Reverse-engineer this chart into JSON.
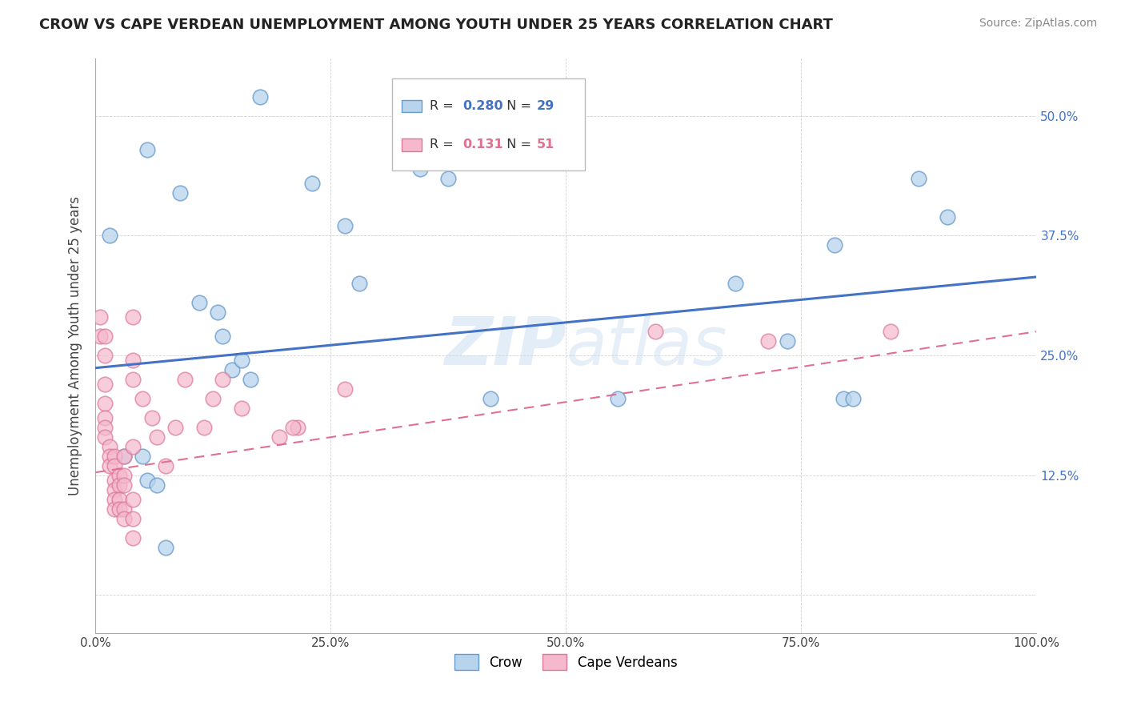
{
  "title": "CROW VS CAPE VERDEAN UNEMPLOYMENT AMONG YOUTH UNDER 25 YEARS CORRELATION CHART",
  "source": "Source: ZipAtlas.com",
  "ylabel": "Unemployment Among Youth under 25 years",
  "crow_r": 0.28,
  "crow_n": 29,
  "cape_r": 0.131,
  "cape_n": 51,
  "crow_color": "#b8d4ed",
  "cape_color": "#f5b8cc",
  "crow_edge_color": "#6699cc",
  "cape_edge_color": "#dd7799",
  "crow_line_color": "#4472c4",
  "cape_line_color": "#e07090",
  "background_color": "#ffffff",
  "xlim": [
    0.0,
    1.0
  ],
  "ylim": [
    -0.04,
    0.56
  ],
  "xticks": [
    0.0,
    0.25,
    0.5,
    0.75,
    1.0
  ],
  "xtick_labels": [
    "0.0%",
    "25.0%",
    "50.0%",
    "75.0%",
    "100.0%"
  ],
  "yticks": [
    0.0,
    0.125,
    0.25,
    0.375,
    0.5
  ],
  "ytick_labels": [
    "",
    "12.5%",
    "25.0%",
    "37.5%",
    "50.0%"
  ],
  "crow_points": [
    [
      0.015,
      0.375
    ],
    [
      0.055,
      0.465
    ],
    [
      0.09,
      0.42
    ],
    [
      0.11,
      0.305
    ],
    [
      0.13,
      0.295
    ],
    [
      0.135,
      0.27
    ],
    [
      0.145,
      0.235
    ],
    [
      0.155,
      0.245
    ],
    [
      0.165,
      0.225
    ],
    [
      0.175,
      0.52
    ],
    [
      0.23,
      0.43
    ],
    [
      0.265,
      0.385
    ],
    [
      0.28,
      0.325
    ],
    [
      0.345,
      0.445
    ],
    [
      0.375,
      0.435
    ],
    [
      0.42,
      0.205
    ],
    [
      0.555,
      0.205
    ],
    [
      0.68,
      0.325
    ],
    [
      0.735,
      0.265
    ],
    [
      0.785,
      0.365
    ],
    [
      0.795,
      0.205
    ],
    [
      0.805,
      0.205
    ],
    [
      0.875,
      0.435
    ],
    [
      0.905,
      0.395
    ],
    [
      0.03,
      0.145
    ],
    [
      0.05,
      0.145
    ],
    [
      0.055,
      0.12
    ],
    [
      0.065,
      0.115
    ],
    [
      0.075,
      0.05
    ]
  ],
  "cape_points": [
    [
      0.005,
      0.29
    ],
    [
      0.005,
      0.27
    ],
    [
      0.01,
      0.27
    ],
    [
      0.01,
      0.25
    ],
    [
      0.01,
      0.22
    ],
    [
      0.01,
      0.2
    ],
    [
      0.01,
      0.185
    ],
    [
      0.01,
      0.175
    ],
    [
      0.01,
      0.165
    ],
    [
      0.015,
      0.155
    ],
    [
      0.015,
      0.145
    ],
    [
      0.015,
      0.135
    ],
    [
      0.02,
      0.145
    ],
    [
      0.02,
      0.135
    ],
    [
      0.02,
      0.12
    ],
    [
      0.02,
      0.11
    ],
    [
      0.02,
      0.1
    ],
    [
      0.02,
      0.09
    ],
    [
      0.025,
      0.125
    ],
    [
      0.025,
      0.115
    ],
    [
      0.025,
      0.1
    ],
    [
      0.025,
      0.09
    ],
    [
      0.03,
      0.145
    ],
    [
      0.03,
      0.125
    ],
    [
      0.03,
      0.115
    ],
    [
      0.03,
      0.09
    ],
    [
      0.03,
      0.08
    ],
    [
      0.04,
      0.29
    ],
    [
      0.04,
      0.245
    ],
    [
      0.04,
      0.225
    ],
    [
      0.04,
      0.155
    ],
    [
      0.04,
      0.1
    ],
    [
      0.04,
      0.08
    ],
    [
      0.04,
      0.06
    ],
    [
      0.05,
      0.205
    ],
    [
      0.06,
      0.185
    ],
    [
      0.065,
      0.165
    ],
    [
      0.075,
      0.135
    ],
    [
      0.085,
      0.175
    ],
    [
      0.095,
      0.225
    ],
    [
      0.115,
      0.175
    ],
    [
      0.125,
      0.205
    ],
    [
      0.135,
      0.225
    ],
    [
      0.155,
      0.195
    ],
    [
      0.195,
      0.165
    ],
    [
      0.215,
      0.175
    ],
    [
      0.265,
      0.215
    ],
    [
      0.595,
      0.275
    ],
    [
      0.715,
      0.265
    ],
    [
      0.845,
      0.275
    ],
    [
      0.21,
      0.175
    ]
  ]
}
